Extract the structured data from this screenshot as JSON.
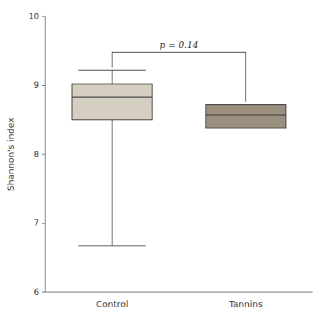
{
  "chart_data": {
    "type": "box",
    "categories": [
      "Control",
      "Tannins"
    ],
    "whisker_low": [
      6.67,
      null
    ],
    "q1": [
      8.5,
      8.38
    ],
    "median": [
      8.83,
      8.57
    ],
    "q3": [
      9.02,
      8.72
    ],
    "whisker_high": [
      9.22,
      null
    ],
    "colors": [
      "#d4cfc0",
      "#9b9080"
    ],
    "ylabel": "Shannon's index",
    "ylim": [
      6,
      10
    ],
    "yticks": [
      6,
      7,
      8,
      9,
      10
    ],
    "grid": false,
    "annotations": [
      {
        "text": "p = 0.14",
        "y": 9.48
      }
    ]
  }
}
